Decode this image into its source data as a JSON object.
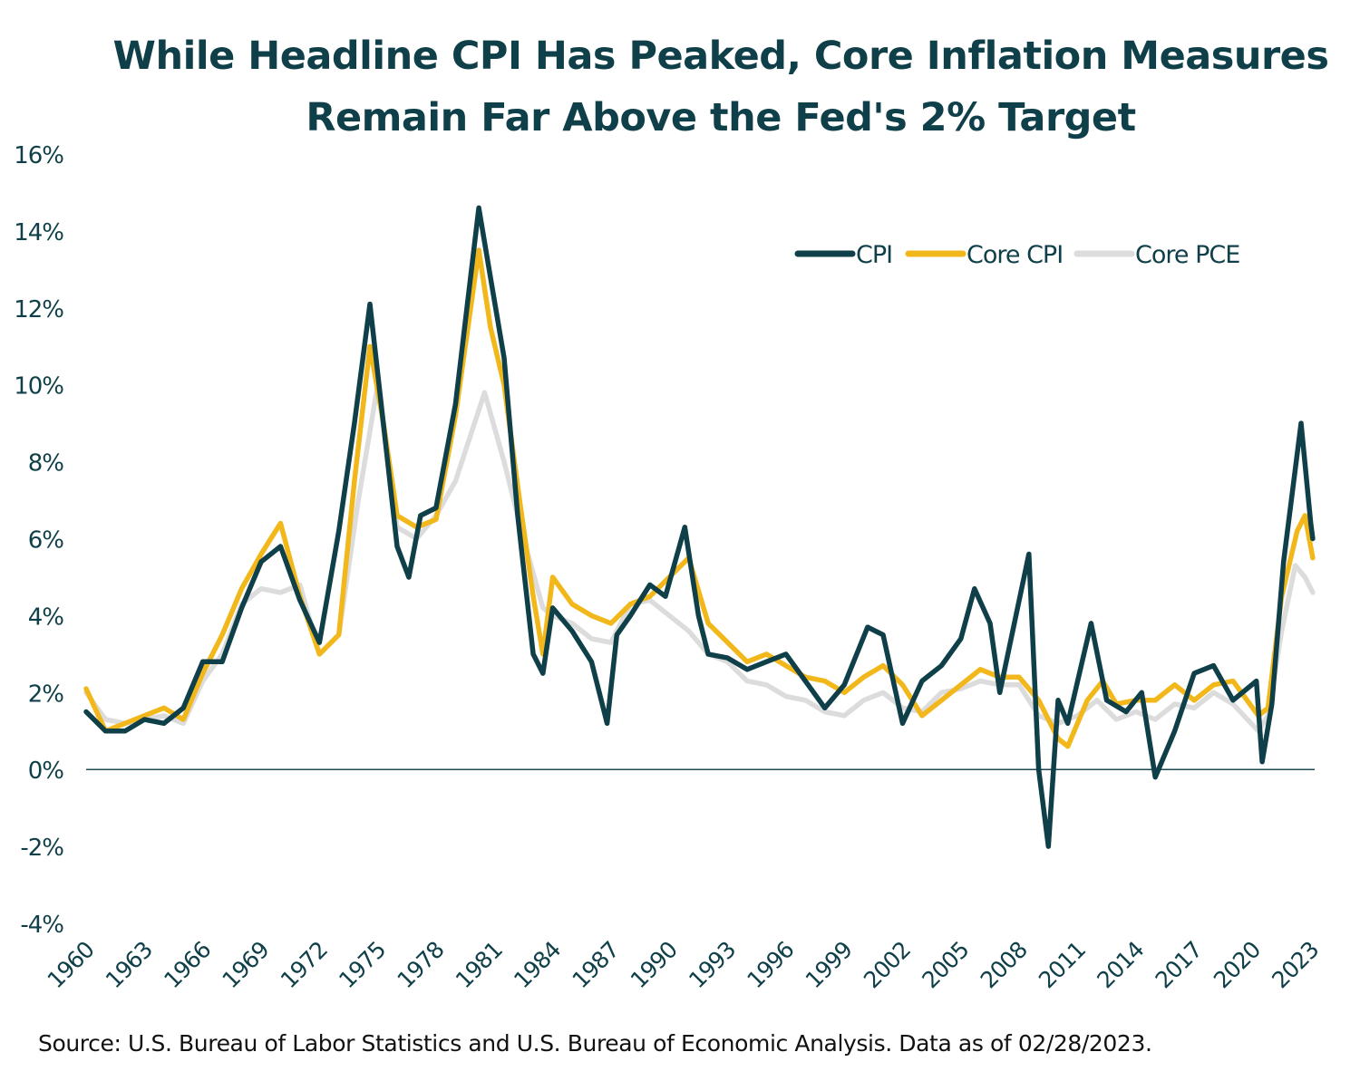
{
  "chart_data": {
    "type": "line",
    "title_lines": [
      "While Headline CPI Has Peaked, Core Inflation Measures",
      "Remain Far Above the Fed's 2% Target"
    ],
    "ylim": [
      -4,
      16
    ],
    "y_ticks": [
      "16%",
      "14%",
      "12%",
      "10%",
      "8%",
      "6%",
      "4%",
      "2%",
      "0%",
      "-2%",
      "-4%"
    ],
    "y_tick_values": [
      16,
      14,
      12,
      10,
      8,
      6,
      4,
      2,
      0,
      -2,
      -4
    ],
    "x_range": [
      1960,
      2023.2
    ],
    "x_ticks": [
      "1960",
      "1963",
      "1966",
      "1969",
      "1972",
      "1975",
      "1978",
      "1981",
      "1984",
      "1987",
      "1990",
      "1993",
      "1996",
      "1999",
      "2002",
      "2005",
      "2008",
      "2011",
      "2014",
      "2017",
      "2020",
      "2023"
    ],
    "zero_line": true,
    "grid": false,
    "legend_position": "top-right",
    "series": [
      {
        "name": "CPI",
        "color": "#0f3f48",
        "points": [
          [
            1960,
            1.5
          ],
          [
            1961,
            1.0
          ],
          [
            1962,
            1.0
          ],
          [
            1963,
            1.3
          ],
          [
            1964,
            1.2
          ],
          [
            1965,
            1.6
          ],
          [
            1966,
            2.8
          ],
          [
            1967,
            2.8
          ],
          [
            1968,
            4.2
          ],
          [
            1969,
            5.4
          ],
          [
            1970,
            5.8
          ],
          [
            1971,
            4.4
          ],
          [
            1972,
            3.3
          ],
          [
            1973,
            6.2
          ],
          [
            1973.8,
            9.0
          ],
          [
            1974.6,
            12.1
          ],
          [
            1975.2,
            9.4
          ],
          [
            1976,
            5.8
          ],
          [
            1976.6,
            5.0
          ],
          [
            1977.2,
            6.6
          ],
          [
            1978,
            6.8
          ],
          [
            1979,
            9.5
          ],
          [
            1980.2,
            14.6
          ],
          [
            1980.8,
            12.8
          ],
          [
            1981.5,
            10.7
          ],
          [
            1982.2,
            6.6
          ],
          [
            1983,
            3.0
          ],
          [
            1983.5,
            2.5
          ],
          [
            1984,
            4.2
          ],
          [
            1985,
            3.6
          ],
          [
            1986,
            2.8
          ],
          [
            1986.8,
            1.2
          ],
          [
            1987.3,
            3.5
          ],
          [
            1988,
            4.0
          ],
          [
            1989,
            4.8
          ],
          [
            1989.8,
            4.5
          ],
          [
            1990.8,
            6.3
          ],
          [
            1991.5,
            4.0
          ],
          [
            1992,
            3.0
          ],
          [
            1993,
            2.9
          ],
          [
            1994,
            2.6
          ],
          [
            1995,
            2.8
          ],
          [
            1996,
            3.0
          ],
          [
            1997,
            2.3
          ],
          [
            1998,
            1.6
          ],
          [
            1999,
            2.2
          ],
          [
            2000.2,
            3.7
          ],
          [
            2001,
            3.5
          ],
          [
            2002,
            1.2
          ],
          [
            2003,
            2.3
          ],
          [
            2004,
            2.7
          ],
          [
            2005,
            3.4
          ],
          [
            2005.7,
            4.7
          ],
          [
            2006.5,
            3.8
          ],
          [
            2007,
            2.0
          ],
          [
            2008.5,
            5.6
          ],
          [
            2009,
            0.0
          ],
          [
            2009.5,
            -2.0
          ],
          [
            2010,
            1.8
          ],
          [
            2010.5,
            1.2
          ],
          [
            2011.7,
            3.8
          ],
          [
            2012.5,
            1.8
          ],
          [
            2013.5,
            1.5
          ],
          [
            2014.3,
            2.0
          ],
          [
            2015,
            -0.2
          ],
          [
            2016,
            1.0
          ],
          [
            2017,
            2.5
          ],
          [
            2018,
            2.7
          ],
          [
            2019,
            1.8
          ],
          [
            2020.2,
            2.3
          ],
          [
            2020.5,
            0.2
          ],
          [
            2021,
            1.7
          ],
          [
            2021.6,
            5.4
          ],
          [
            2022.5,
            9.0
          ],
          [
            2023,
            6.4
          ],
          [
            2023.1,
            6.0
          ]
        ]
      },
      {
        "name": "Core CPI",
        "color": "#f2b81b",
        "points": [
          [
            1960,
            2.1
          ],
          [
            1961,
            1.0
          ],
          [
            1962,
            1.2
          ],
          [
            1963,
            1.4
          ],
          [
            1964,
            1.6
          ],
          [
            1965,
            1.3
          ],
          [
            1966,
            2.5
          ],
          [
            1967,
            3.5
          ],
          [
            1968,
            4.7
          ],
          [
            1969,
            5.6
          ],
          [
            1970,
            6.4
          ],
          [
            1971,
            4.5
          ],
          [
            1972,
            3.0
          ],
          [
            1973,
            3.5
          ],
          [
            1973.8,
            7.5
          ],
          [
            1974.6,
            11.0
          ],
          [
            1975.3,
            9.0
          ],
          [
            1976,
            6.6
          ],
          [
            1977,
            6.3
          ],
          [
            1978,
            6.5
          ],
          [
            1979,
            9.2
          ],
          [
            1980.2,
            13.5
          ],
          [
            1980.8,
            11.5
          ],
          [
            1981.5,
            10.0
          ],
          [
            1982.3,
            7.0
          ],
          [
            1983,
            4.5
          ],
          [
            1983.5,
            3.0
          ],
          [
            1984,
            5.0
          ],
          [
            1985,
            4.3
          ],
          [
            1986,
            4.0
          ],
          [
            1987,
            3.8
          ],
          [
            1988,
            4.3
          ],
          [
            1989,
            4.5
          ],
          [
            1990,
            5.0
          ],
          [
            1991,
            5.5
          ],
          [
            1992,
            3.8
          ],
          [
            1993,
            3.3
          ],
          [
            1994,
            2.8
          ],
          [
            1995,
            3.0
          ],
          [
            1996,
            2.7
          ],
          [
            1997,
            2.4
          ],
          [
            1998,
            2.3
          ],
          [
            1999,
            2.0
          ],
          [
            2000,
            2.4
          ],
          [
            2001,
            2.7
          ],
          [
            2002,
            2.2
          ],
          [
            2003,
            1.4
          ],
          [
            2004,
            1.8
          ],
          [
            2005,
            2.2
          ],
          [
            2006,
            2.6
          ],
          [
            2007,
            2.4
          ],
          [
            2008,
            2.4
          ],
          [
            2009,
            1.8
          ],
          [
            2010,
            0.8
          ],
          [
            2010.5,
            0.6
          ],
          [
            2011.5,
            1.8
          ],
          [
            2012.3,
            2.3
          ],
          [
            2013,
            1.7
          ],
          [
            2014,
            1.8
          ],
          [
            2015,
            1.8
          ],
          [
            2016,
            2.2
          ],
          [
            2017,
            1.8
          ],
          [
            2018,
            2.2
          ],
          [
            2019,
            2.3
          ],
          [
            2020.3,
            1.4
          ],
          [
            2020.8,
            1.6
          ],
          [
            2021.5,
            4.5
          ],
          [
            2022.3,
            6.2
          ],
          [
            2022.7,
            6.6
          ],
          [
            2023.1,
            5.5
          ]
        ]
      },
      {
        "name": "Core PCE",
        "color": "#dcdcdc",
        "points": [
          [
            1960,
            2.0
          ],
          [
            1961,
            1.3
          ],
          [
            1962,
            1.2
          ],
          [
            1963,
            1.3
          ],
          [
            1964,
            1.4
          ],
          [
            1965,
            1.2
          ],
          [
            1966,
            2.3
          ],
          [
            1967,
            3.0
          ],
          [
            1968,
            4.3
          ],
          [
            1969,
            4.7
          ],
          [
            1970,
            4.6
          ],
          [
            1971,
            4.8
          ],
          [
            1972,
            3.0
          ],
          [
            1973,
            3.5
          ],
          [
            1974,
            7.0
          ],
          [
            1975,
            10.0
          ],
          [
            1976,
            6.3
          ],
          [
            1977,
            6.0
          ],
          [
            1978,
            6.6
          ],
          [
            1979,
            7.5
          ],
          [
            1980.5,
            9.8
          ],
          [
            1981.5,
            8.0
          ],
          [
            1982.5,
            6.0
          ],
          [
            1983.5,
            4.2
          ],
          [
            1984,
            4.0
          ],
          [
            1985,
            3.8
          ],
          [
            1986,
            3.4
          ],
          [
            1987,
            3.3
          ],
          [
            1988,
            4.3
          ],
          [
            1989,
            4.4
          ],
          [
            1990,
            4.0
          ],
          [
            1991,
            3.6
          ],
          [
            1992,
            3.0
          ],
          [
            1993,
            2.8
          ],
          [
            1994,
            2.3
          ],
          [
            1995,
            2.2
          ],
          [
            1996,
            1.9
          ],
          [
            1997,
            1.8
          ],
          [
            1998,
            1.5
          ],
          [
            1999,
            1.4
          ],
          [
            2000,
            1.8
          ],
          [
            2001,
            2.0
          ],
          [
            2002,
            1.6
          ],
          [
            2003,
            1.5
          ],
          [
            2004,
            2.0
          ],
          [
            2005,
            2.1
          ],
          [
            2006,
            2.3
          ],
          [
            2007,
            2.2
          ],
          [
            2008,
            2.2
          ],
          [
            2009,
            1.4
          ],
          [
            2010,
            1.2
          ],
          [
            2011,
            1.4
          ],
          [
            2012,
            1.8
          ],
          [
            2013,
            1.3
          ],
          [
            2014,
            1.5
          ],
          [
            2015,
            1.3
          ],
          [
            2016,
            1.7
          ],
          [
            2017,
            1.6
          ],
          [
            2018,
            2.0
          ],
          [
            2019,
            1.7
          ],
          [
            2020.3,
            1.0
          ],
          [
            2020.8,
            1.4
          ],
          [
            2021.5,
            3.6
          ],
          [
            2022.2,
            5.3
          ],
          [
            2022.7,
            5.0
          ],
          [
            2023.1,
            4.6
          ]
        ]
      }
    ]
  },
  "source_text": "Source: U.S. Bureau of Labor Statistics and U.S. Bureau of Economic Analysis. Data as of 02/28/2023."
}
